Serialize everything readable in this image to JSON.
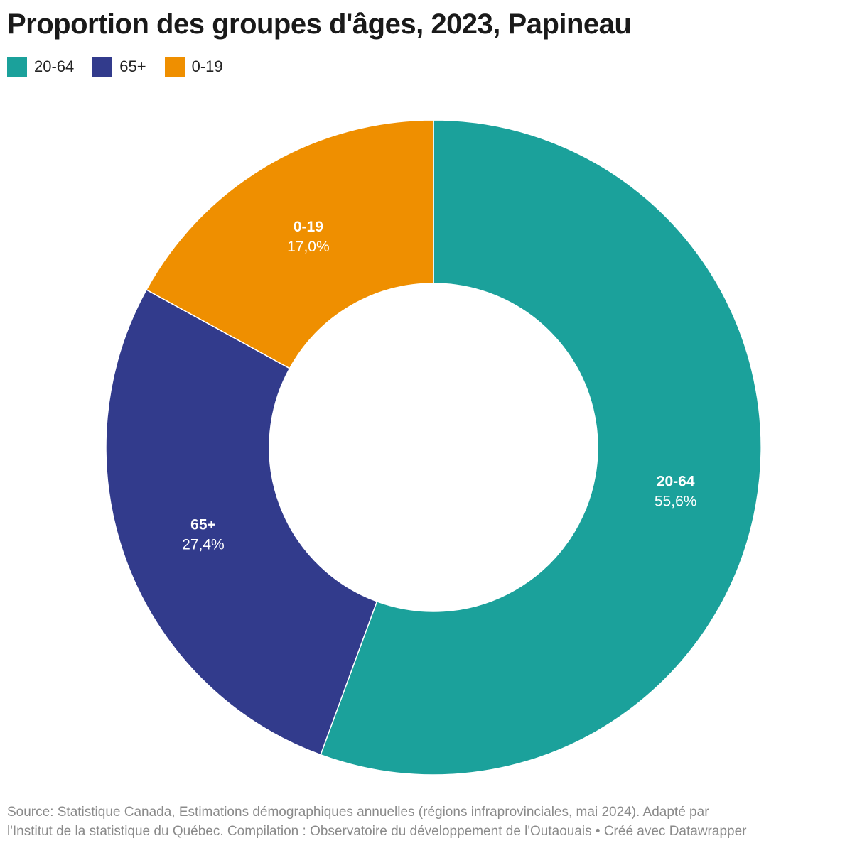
{
  "title": "Proportion des groupes d'âges, 2023, Papineau",
  "legend": [
    {
      "label": "20-64",
      "color": "#1ba19b"
    },
    {
      "label": "65+",
      "color": "#323b8c"
    },
    {
      "label": "0-19",
      "color": "#ef8f00"
    }
  ],
  "chart_data": {
    "type": "pie",
    "variant": "donut",
    "title": "Proportion des groupes d'âges, 2023, Papineau",
    "categories": [
      "20-64",
      "65+",
      "0-19"
    ],
    "values": [
      55.6,
      27.4,
      17.0
    ],
    "value_labels": [
      "55,6%",
      "27,4%",
      "17,0%"
    ],
    "colors": [
      "#1ba19b",
      "#323b8c",
      "#ef8f00"
    ],
    "unit": "%",
    "legend_position": "top-left"
  },
  "footer": {
    "line1": "Source: Statistique Canada, Estimations démographiques annuelles (régions infraprovinciales, mai 2024). Adapté par",
    "line2": "l'Institut de la statistique du Québec. Compilation : Observatoire du développement de l'Outaouais • Créé avec Datawrapper"
  }
}
